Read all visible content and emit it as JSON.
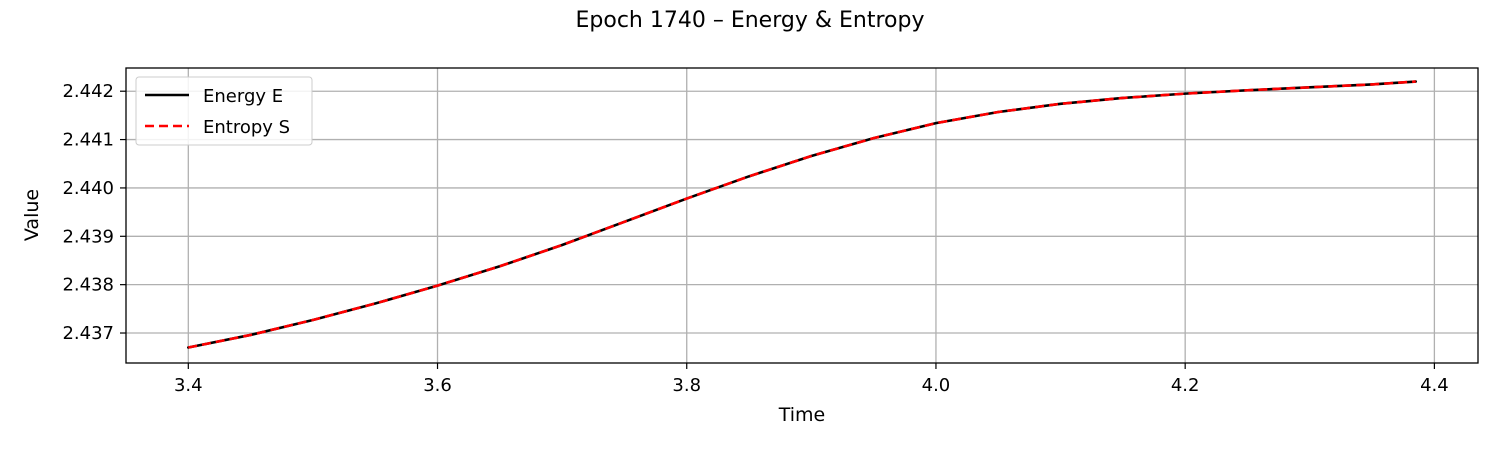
{
  "chart_data": {
    "type": "line",
    "title": "Epoch 1740 – Energy & Entropy",
    "xlabel": "Time",
    "ylabel": "Value",
    "xlim": [
      3.35,
      4.435
    ],
    "ylim": [
      2.43638,
      2.44248
    ],
    "xticks": [
      3.4,
      3.6,
      3.8,
      4.0,
      4.2,
      4.4
    ],
    "xtick_labels": [
      "3.4",
      "3.6",
      "3.8",
      "4.0",
      "4.2",
      "4.4"
    ],
    "yticks": [
      2.437,
      2.438,
      2.439,
      2.44,
      2.441,
      2.442
    ],
    "ytick_labels": [
      "2.437",
      "2.438",
      "2.439",
      "2.440",
      "2.441",
      "2.442"
    ],
    "grid": true,
    "legend_position": "top-left",
    "x": [
      3.4,
      3.45,
      3.5,
      3.55,
      3.6,
      3.65,
      3.7,
      3.75,
      3.8,
      3.85,
      3.9,
      3.95,
      4.0,
      4.05,
      4.1,
      4.15,
      4.2,
      4.25,
      4.3,
      4.35,
      4.385
    ],
    "series": [
      {
        "name": "Energy E",
        "color": "#000000",
        "dash": "solid",
        "values": [
          2.4367,
          2.43696,
          2.43727,
          2.43761,
          2.43798,
          2.43838,
          2.43882,
          2.4393,
          2.43978,
          2.44024,
          2.44066,
          2.44103,
          2.44134,
          2.44157,
          2.44174,
          2.44186,
          2.44195,
          2.44202,
          2.44208,
          2.44214,
          2.4422
        ]
      },
      {
        "name": "Entropy S",
        "color": "#ff0000",
        "dash": "dashed",
        "values": [
          2.4367,
          2.43696,
          2.43727,
          2.43761,
          2.43798,
          2.43838,
          2.43882,
          2.4393,
          2.43978,
          2.44024,
          2.44066,
          2.44103,
          2.44134,
          2.44157,
          2.44174,
          2.44186,
          2.44195,
          2.44202,
          2.44208,
          2.44214,
          2.4422
        ]
      }
    ]
  }
}
